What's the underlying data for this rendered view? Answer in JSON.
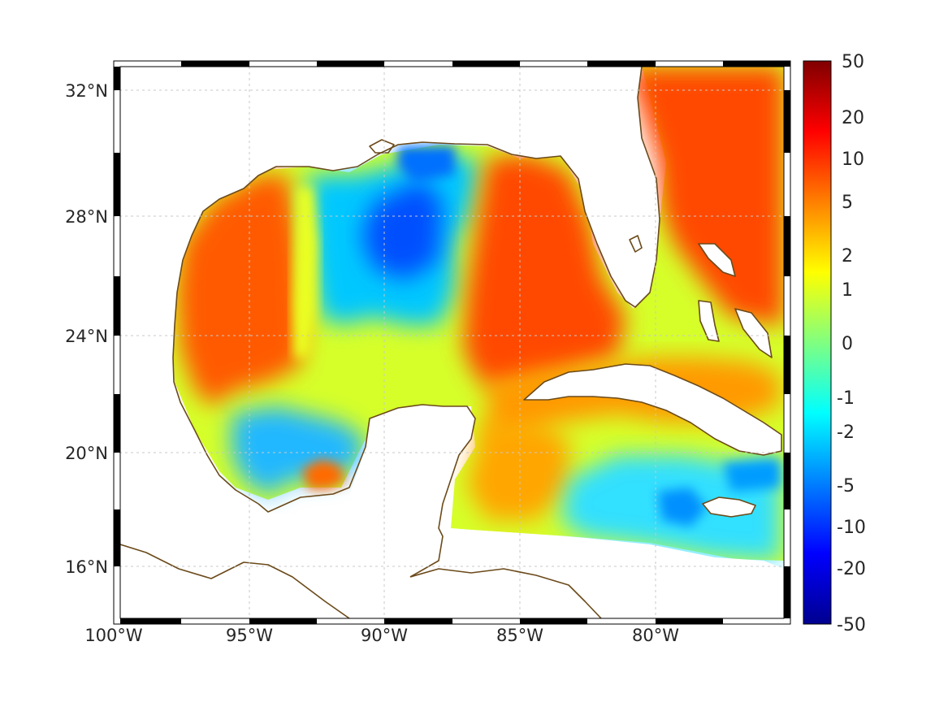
{
  "map": {
    "projection": "mercator",
    "lon_range": [
      -100,
      -75
    ],
    "lat_range": [
      14.5,
      33
    ],
    "graticule": "dashed gray",
    "frame": "black-white checkerboard",
    "coastline_color": "#6b4a1a",
    "land_color": "#ffffff",
    "longitude_labels": [
      "100°W",
      "95°W",
      "90°W",
      "85°W",
      "80°W"
    ],
    "latitude_labels": [
      "32°N",
      "28°N",
      "24°N",
      "20°N",
      "16°N"
    ]
  },
  "colorbar": {
    "colormap": "jet",
    "scale": "symmetric log",
    "ticks": [
      "50",
      "20",
      "10",
      "5",
      "2",
      "1",
      "0",
      "-1",
      "-2",
      "-5",
      "-10",
      "-20",
      "-50"
    ]
  },
  "field": {
    "description_values": "relative field values (colorbar units)",
    "regions": [
      {
        "name": "western-gulf",
        "value": 8
      },
      {
        "name": "central-north-gulf-low",
        "value": -6
      },
      {
        "name": "loop-current-east-gulf",
        "value": 8
      },
      {
        "name": "atlantic-east-of-florida",
        "value": 9
      },
      {
        "name": "yucatan-channel",
        "value": 1
      },
      {
        "name": "caribbean-south",
        "value": -3
      },
      {
        "name": "bay-of-campeche",
        "value": -3
      },
      {
        "name": "campeche-warm-eddy",
        "value": 6
      }
    ]
  }
}
